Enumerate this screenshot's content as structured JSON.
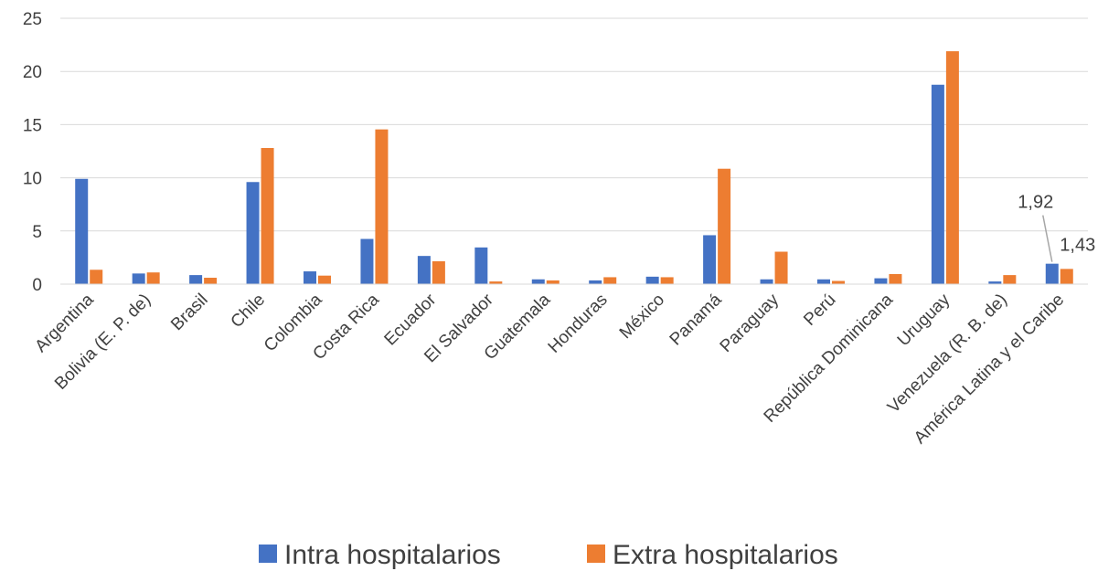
{
  "chart_data": {
    "type": "bar",
    "categories": [
      "Argentina",
      "Bolivia (E. P. de)",
      "Brasil",
      "Chile",
      "Colombia",
      "Costa Rica",
      "Ecuador",
      "El Salvador",
      "Guatemala",
      "Honduras",
      "México",
      "Panamá",
      "Paraguay",
      "Perú",
      "República Dominicana",
      "Uruguay",
      "Venezuela (R. B. de)",
      "América Latina y el Caribe"
    ],
    "series": [
      {
        "name": "Intra hospitalarios",
        "color": "#4472C4",
        "values": [
          9.9,
          1.0,
          0.85,
          9.6,
          1.2,
          4.25,
          2.65,
          3.45,
          0.45,
          0.35,
          0.7,
          4.6,
          0.45,
          0.45,
          0.55,
          18.75,
          0.25,
          1.92
        ]
      },
      {
        "name": "Extra hospitalarios",
        "color": "#ED7D31",
        "values": [
          1.35,
          1.1,
          0.6,
          12.8,
          0.8,
          14.55,
          2.15,
          0.25,
          0.35,
          0.65,
          0.65,
          10.85,
          3.05,
          0.3,
          0.95,
          21.9,
          0.85,
          1.43
        ]
      }
    ],
    "data_labels": [
      {
        "category": "América Latina y el Caribe",
        "series": "Intra hospitalarios",
        "text": "1,92"
      },
      {
        "category": "América Latina y el Caribe",
        "series": "Extra hospitalarios",
        "text": "1,43"
      }
    ],
    "yticks": [
      "0",
      "5",
      "10",
      "15",
      "20",
      "25"
    ],
    "ylim": [
      0,
      25
    ],
    "grid": true,
    "legend_position": "bottom",
    "title": "",
    "xlabel": "",
    "ylabel": ""
  }
}
